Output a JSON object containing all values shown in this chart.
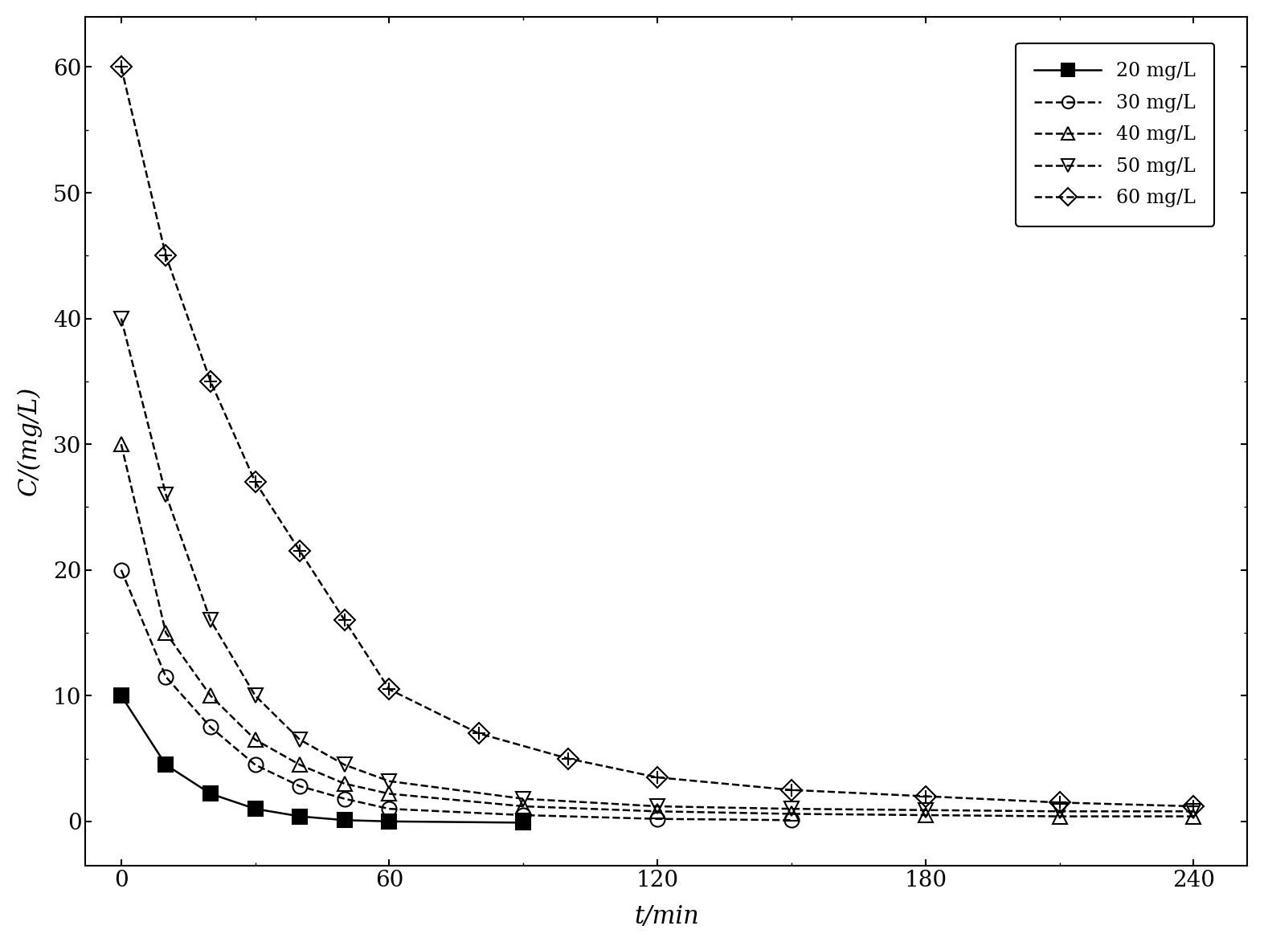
{
  "series": [
    {
      "label": "20 mg/L",
      "marker": "s",
      "fillstyle": "full",
      "linestyle": "-",
      "color": "#000000",
      "x": [
        0,
        10,
        20,
        30,
        40,
        50,
        60,
        90
      ],
      "y": [
        10.0,
        4.5,
        2.2,
        1.0,
        0.4,
        0.1,
        0.0,
        -0.1
      ]
    },
    {
      "label": "30 mg/L",
      "marker": "o",
      "fillstyle": "none",
      "linestyle": "--",
      "color": "#000000",
      "x": [
        0,
        10,
        20,
        30,
        40,
        50,
        60,
        90,
        120,
        150
      ],
      "y": [
        20.0,
        11.5,
        7.5,
        4.5,
        2.8,
        1.8,
        1.0,
        0.5,
        0.2,
        0.1
      ]
    },
    {
      "label": "40 mg/L",
      "marker": "^",
      "fillstyle": "none",
      "linestyle": "--",
      "color": "#000000",
      "x": [
        0,
        10,
        20,
        30,
        40,
        50,
        60,
        90,
        120,
        150,
        180,
        210,
        240
      ],
      "y": [
        30.0,
        15.0,
        10.0,
        6.5,
        4.5,
        3.0,
        2.2,
        1.2,
        0.8,
        0.6,
        0.5,
        0.4,
        0.4
      ]
    },
    {
      "label": "50 mg/L",
      "marker": "v",
      "fillstyle": "none",
      "linestyle": "--",
      "color": "#000000",
      "x": [
        0,
        10,
        20,
        30,
        40,
        50,
        60,
        90,
        120,
        150,
        180,
        210,
        240
      ],
      "y": [
        40.0,
        26.0,
        16.0,
        10.0,
        6.5,
        4.5,
        3.2,
        1.8,
        1.2,
        1.0,
        0.9,
        0.8,
        0.8
      ]
    },
    {
      "label": "60 mg/L",
      "marker": "D",
      "fillstyle": "none",
      "linestyle": "--",
      "color": "#000000",
      "x": [
        0,
        10,
        20,
        30,
        40,
        50,
        60,
        80,
        100,
        120,
        150,
        180,
        210,
        240
      ],
      "y": [
        60.0,
        45.0,
        35.0,
        27.0,
        21.5,
        16.0,
        10.5,
        7.0,
        5.0,
        3.5,
        2.5,
        2.0,
        1.5,
        1.2
      ]
    }
  ],
  "xlabel": "t/min",
  "ylabel": "C/(mg/L)",
  "xlim": [
    -8,
    252
  ],
  "ylim": [
    -3.5,
    64
  ],
  "xticks": [
    0,
    60,
    120,
    180,
    240
  ],
  "yticks": [
    0,
    10,
    20,
    30,
    40,
    50,
    60
  ],
  "label_fontsize": 22,
  "tick_fontsize": 20,
  "legend_fontsize": 17,
  "background_color": "#ffffff",
  "marker_size": 13,
  "linewidth": 1.8
}
